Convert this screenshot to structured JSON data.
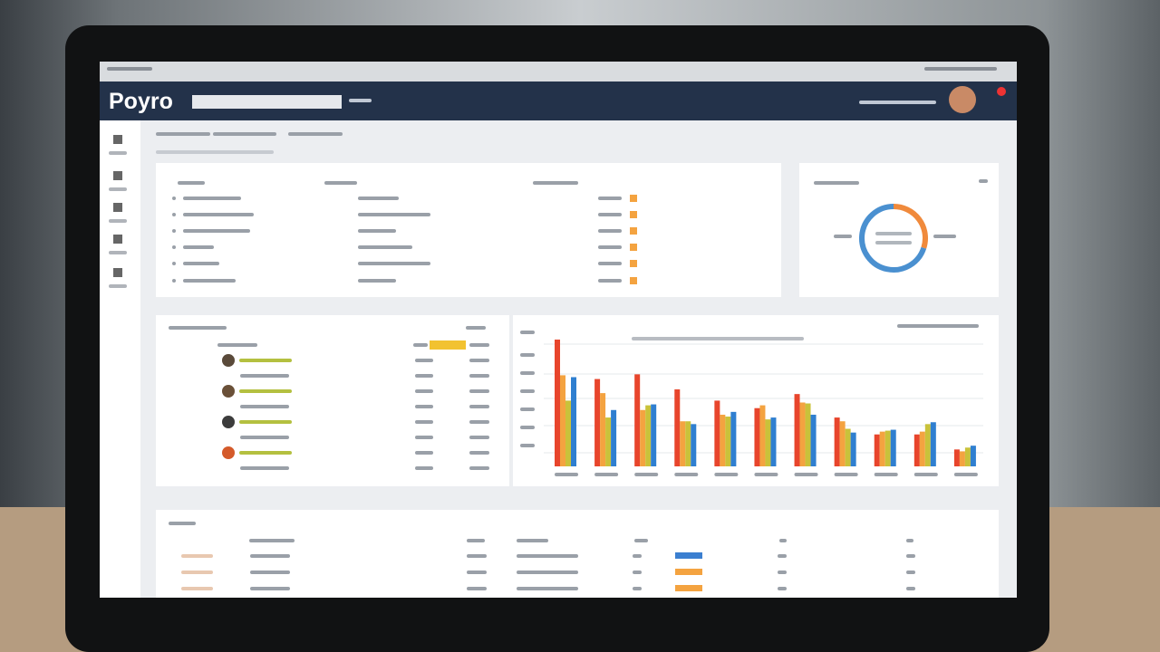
{
  "header": {
    "brand": "Poyro"
  },
  "chart_data": [
    {
      "type": "bar",
      "series": [
        {
          "color": "#e8452c",
          "values": [
            135,
            93,
            98,
            82,
            70,
            62,
            77,
            52,
            34,
            34,
            18
          ]
        },
        {
          "color": "#f4a340",
          "values": [
            97,
            78,
            60,
            48,
            55,
            65,
            68,
            48,
            37,
            37,
            16
          ]
        },
        {
          "color": "#c9c23a",
          "values": [
            70,
            52,
            65,
            48,
            53,
            50,
            67,
            40,
            38,
            45,
            20
          ]
        },
        {
          "color": "#2f7fd0",
          "values": [
            95,
            60,
            66,
            45,
            58,
            52,
            55,
            36,
            39,
            47,
            22
          ]
        }
      ]
    },
    {
      "type": "pie",
      "values": [
        30,
        70
      ],
      "colors": [
        "#f08a3c",
        "#4a90d0"
      ]
    }
  ]
}
